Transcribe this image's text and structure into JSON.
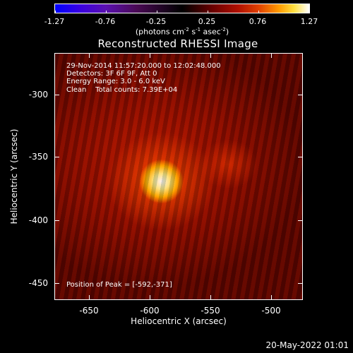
{
  "colorbar": {
    "tick_labels": [
      "-1.27",
      "-0.76",
      "-0.25",
      "0.25",
      "0.76",
      "1.27"
    ],
    "units_main": "(photons cm",
    "units_exp1": "-2",
    "units_s": " s",
    "units_exp2": "-1",
    "units_asec": " asec",
    "units_exp3": "-2",
    "units_close": ")"
  },
  "title": "Reconstructed RHESSI Image",
  "annotation": {
    "time": "29-Nov-2014 11:57:20.000 to 12:02:48.000",
    "detectors": "Detectors: 3F 6F 9F, Att 0",
    "energy": "Energy Range: 3.0 - 6.0 keV",
    "clean": "Clean    Total counts: 7.39E+04",
    "peak": "Position of Peak = [-592,-371]"
  },
  "axes": {
    "xlabel": "Heliocentric X (arcsec)",
    "ylabel": "Heliocentric Y (arcsec)",
    "xticks": [
      "-650",
      "-600",
      "-550",
      "-500"
    ],
    "yticks": [
      "-300",
      "-350",
      "-400",
      "-450"
    ]
  },
  "footer_date": "20-May-2022 01:01"
}
